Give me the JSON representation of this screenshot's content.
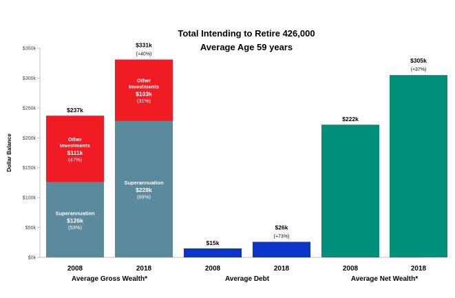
{
  "chart_data": {
    "type": "bar",
    "title": "Total Intending to Retire 426,000",
    "subtitle": "Average Age 59 years",
    "ylabel": "Dollar Balance",
    "ylim": [
      0,
      350
    ],
    "yticks": [
      0,
      50,
      100,
      150,
      200,
      250,
      300,
      350
    ],
    "ytick_labels": [
      "$0k",
      "$50k",
      "$100k",
      "$150k",
      "$200k",
      "$250k",
      "$300k",
      "$350k"
    ],
    "colors": {
      "superannuation": "#5a8a9c",
      "other_investments": "#f01c24",
      "debt": "#0a35c7",
      "net_wealth": "#00907a"
    },
    "groups": [
      {
        "name": "Average Gross Wealth*",
        "bars": [
          {
            "category": "2008",
            "total_label": "$237k",
            "change_label": "",
            "segments": [
              {
                "series": "superannuation",
                "label": "Superannuation",
                "value": 126,
                "value_label": "$126k",
                "pct_label": "(53%)"
              },
              {
                "series": "other_investments",
                "label": "Other Investments",
                "label_lines": [
                  "Other",
                  "Investments"
                ],
                "value": 111,
                "value_label": "$111k",
                "pct_label": "(47%)"
              }
            ]
          },
          {
            "category": "2018",
            "total_label": "$331k",
            "change_label": "(+40%)",
            "segments": [
              {
                "series": "superannuation",
                "label": "Superannuation",
                "value": 228,
                "value_label": "$228k",
                "pct_label": "(69%)"
              },
              {
                "series": "other_investments",
                "label": "Other Investments",
                "label_lines": [
                  "Other",
                  "Investments"
                ],
                "value": 103,
                "value_label": "$103k",
                "pct_label": "(31%)"
              }
            ]
          }
        ]
      },
      {
        "name": "Average Debt",
        "bars": [
          {
            "category": "2008",
            "total_label": "$15k",
            "change_label": "",
            "segments": [
              {
                "series": "debt",
                "value": 15
              }
            ]
          },
          {
            "category": "2018",
            "total_label": "$26k",
            "change_label": "(+73%)",
            "segments": [
              {
                "series": "debt",
                "value": 26
              }
            ]
          }
        ]
      },
      {
        "name": "Average Net Wealth*",
        "bars": [
          {
            "category": "2008",
            "total_label": "$222k",
            "change_label": "",
            "segments": [
              {
                "series": "net_wealth",
                "value": 222
              }
            ]
          },
          {
            "category": "2018",
            "total_label": "$305k",
            "change_label": "(+37%)",
            "segments": [
              {
                "series": "net_wealth",
                "value": 305
              }
            ]
          }
        ]
      }
    ]
  }
}
